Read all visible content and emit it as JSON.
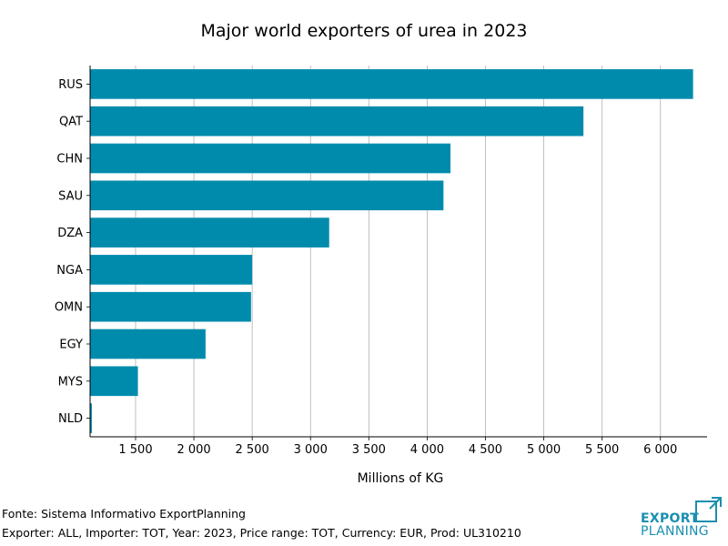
{
  "chart_data": {
    "type": "bar",
    "orientation": "horizontal",
    "title": "Major world exporters of urea in 2023",
    "xlabel": "Millions of KG",
    "ylabel": "",
    "categories": [
      "RUS",
      "QAT",
      "CHN",
      "SAU",
      "DZA",
      "NGA",
      "OMN",
      "EGY",
      "MYS",
      "NLD"
    ],
    "values": [
      6280,
      5340,
      4200,
      4140,
      3160,
      2500,
      2490,
      2100,
      1520,
      1125
    ],
    "xlim": [
      1110,
      6400
    ],
    "xticks": [
      1500,
      2000,
      2500,
      3000,
      3500,
      4000,
      4500,
      5000,
      5500,
      6000
    ],
    "xtick_labels": [
      "1 500",
      "2 000",
      "2 500",
      "3 000",
      "3 500",
      "4 000",
      "4 500",
      "5 000",
      "5 500",
      "6 000"
    ],
    "grid": "vertical",
    "bar_color": "#008bac"
  },
  "footer": {
    "source": "Fonte: Sistema Informativo ExportPlanning",
    "filters": "Exporter: ALL, Importer: TOT, Year: 2023, Price range: TOT, Currency: EUR, Prod: UL310210"
  },
  "logo": {
    "line1": "EXPORT",
    "line2": "PLANNING",
    "color": "#1a8fb0"
  }
}
